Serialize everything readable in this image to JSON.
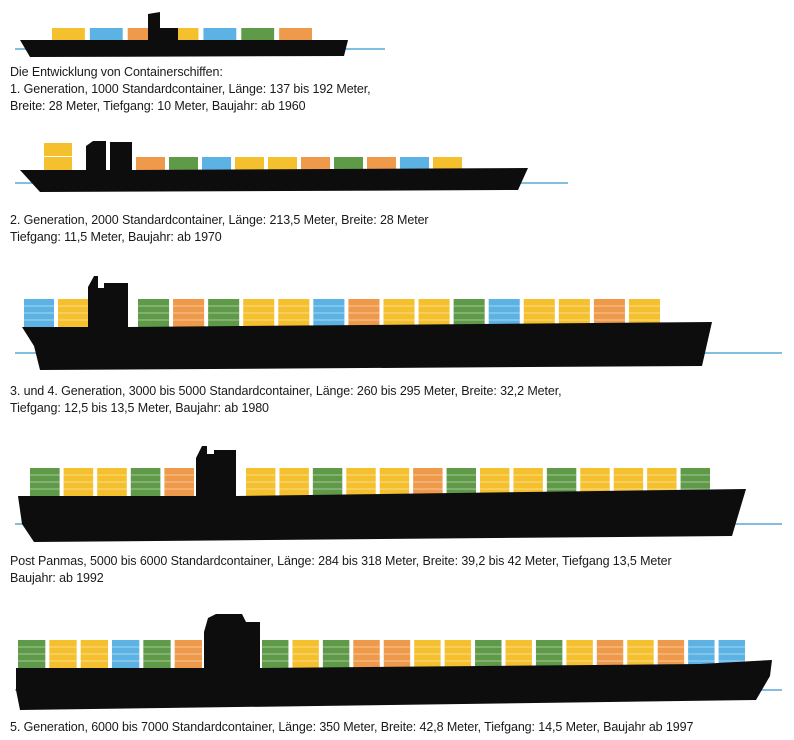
{
  "intro": "Die Entwicklung von Containerschiffen:",
  "colors": {
    "hull": "#0d0d0d",
    "water": "#5aa9d6",
    "yellow": "#f5c02e",
    "orange": "#ee9a4a",
    "green": "#5f9a48",
    "blue": "#5cb3e3"
  },
  "ships": [
    {
      "line1": "1. Generation, 1000 Standardcontainer, Länge: 137 bis 192 Meter,",
      "line2": "Breite: 28 Meter, Tiefgang: 10 Meter, Baujahr: ab 1960",
      "containers": [
        "yellow",
        "blue",
        "orange",
        "yellow",
        "blue",
        "green",
        "orange"
      ]
    },
    {
      "line1": "2. Generation, 2000 Standardcontainer, Länge: 213,5 Meter, Breite: 28 Meter",
      "line2": "Tiefgang: 11,5 Meter, Baujahr: ab 1970",
      "containers": [
        "yellow",
        "orange",
        "green",
        "blue",
        "yellow",
        "yellow",
        "orange",
        "green",
        "orange",
        "blue",
        "yellow"
      ]
    },
    {
      "line1": "3. und 4. Generation, 3000 bis 5000 Standardcontainer, Länge: 260 bis 295 Meter, Breite: 32,2 Meter,",
      "line2": "Tiefgang: 12,5 bis 13,5 Meter, Baujahr: ab 1980",
      "containers": [
        "blue",
        "yellow",
        "green",
        "orange",
        "green",
        "yellow",
        "yellow",
        "blue",
        "orange",
        "yellow",
        "yellow",
        "green",
        "blue",
        "yellow",
        "yellow",
        "orange",
        "yellow"
      ]
    },
    {
      "line1": "Post Panmas, 5000 bis 6000 Standardcontainer, Länge: 284 bis 318 Meter, Breite: 39,2 bis 42 Meter, Tiefgang 13,5 Meter",
      "line2": "Baujahr: ab 1992",
      "containers": [
        "green",
        "yellow",
        "yellow",
        "green",
        "orange",
        "yellow",
        "yellow",
        "green",
        "yellow",
        "yellow",
        "orange",
        "green",
        "yellow",
        "yellow",
        "green",
        "yellow",
        "yellow",
        "yellow",
        "green"
      ]
    },
    {
      "line1": "5. Generation, 6000 bis 7000 Standardcontainer, Länge: 350 Meter, Breite: 42,8 Meter, Tiefgang: 14,5 Meter, Baujahr ab 1997",
      "line2": "",
      "containers": [
        "green",
        "yellow",
        "yellow",
        "blue",
        "green",
        "orange",
        "green",
        "yellow",
        "green",
        "orange",
        "orange",
        "yellow",
        "yellow",
        "green",
        "yellow",
        "green",
        "yellow",
        "orange",
        "yellow",
        "orange",
        "blue",
        "blue"
      ]
    }
  ]
}
